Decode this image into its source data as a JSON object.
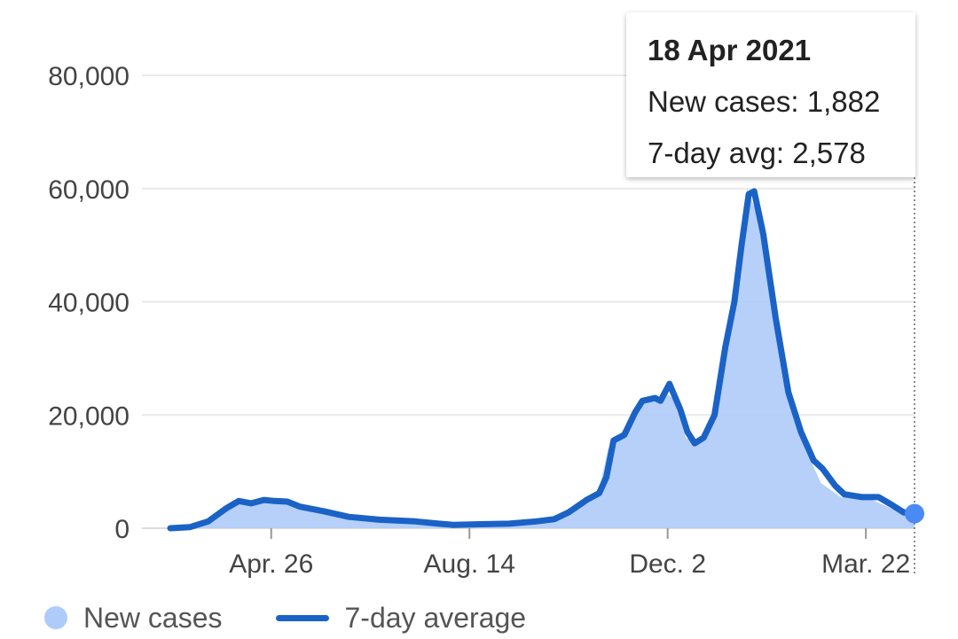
{
  "chart_data": {
    "type": "area",
    "title": "",
    "xlabel": "",
    "ylabel": "",
    "ylim": [
      0,
      80000
    ],
    "y_ticks": [
      0,
      20000,
      40000,
      60000,
      80000
    ],
    "y_tick_labels": [
      "0",
      "20,000",
      "40,000",
      "60,000",
      "80,000"
    ],
    "x_tick_labels": [
      "Apr. 26",
      "Aug. 14",
      "Dec. 2",
      "Mar. 22"
    ],
    "x_tick_dates": [
      "2020-04-26",
      "2020-08-14",
      "2020-12-02",
      "2021-03-22"
    ],
    "xlim": [
      "2020-03-01",
      "2021-04-18"
    ],
    "grid": true,
    "legend_position": "bottom-left",
    "series": [
      {
        "name": "New cases",
        "style": "filled-area",
        "color": "#aecbfa",
        "points": [
          [
            "2020-03-01",
            0
          ],
          [
            "2020-03-15",
            500
          ],
          [
            "2020-03-25",
            2000
          ],
          [
            "2020-04-05",
            5000
          ],
          [
            "2020-04-15",
            4200
          ],
          [
            "2020-04-28",
            5000
          ],
          [
            "2020-05-10",
            4500
          ],
          [
            "2020-05-20",
            3000
          ],
          [
            "2020-06-15",
            1800
          ],
          [
            "2020-07-01",
            1300
          ],
          [
            "2020-07-20",
            1000
          ],
          [
            "2020-08-01",
            400
          ],
          [
            "2020-08-20",
            600
          ],
          [
            "2020-09-10",
            800
          ],
          [
            "2020-09-25",
            1200
          ],
          [
            "2020-10-05",
            2500
          ],
          [
            "2020-10-15",
            4000
          ],
          [
            "2020-10-25",
            7000
          ],
          [
            "2020-10-30",
            14000
          ],
          [
            "2020-11-05",
            16000
          ],
          [
            "2020-11-15",
            22000
          ],
          [
            "2020-11-25",
            22500
          ],
          [
            "2020-11-30",
            24000
          ],
          [
            "2020-12-05",
            23000
          ],
          [
            "2020-12-12",
            16000
          ],
          [
            "2020-12-18",
            15000
          ],
          [
            "2020-12-25",
            17000
          ],
          [
            "2021-01-03",
            30000
          ],
          [
            "2021-01-10",
            45000
          ],
          [
            "2021-01-15",
            60000
          ],
          [
            "2021-01-20",
            56000
          ],
          [
            "2021-01-28",
            42000
          ],
          [
            "2021-02-05",
            25000
          ],
          [
            "2021-02-15",
            15000
          ],
          [
            "2021-02-25",
            8000
          ],
          [
            "2021-03-08",
            5500
          ],
          [
            "2021-03-22",
            5500
          ],
          [
            "2021-04-05",
            3500
          ],
          [
            "2021-04-18",
            1882
          ]
        ]
      },
      {
        "name": "7-day average",
        "style": "line",
        "color": "#1a62c6",
        "points": [
          [
            "2020-03-01",
            0
          ],
          [
            "2020-03-12",
            200
          ],
          [
            "2020-03-22",
            1200
          ],
          [
            "2020-04-01",
            3500
          ],
          [
            "2020-04-08",
            4800
          ],
          [
            "2020-04-15",
            4400
          ],
          [
            "2020-04-22",
            5000
          ],
          [
            "2020-04-28",
            4800
          ],
          [
            "2020-05-05",
            4700
          ],
          [
            "2020-05-12",
            3800
          ],
          [
            "2020-05-25",
            3000
          ],
          [
            "2020-06-08",
            2000
          ],
          [
            "2020-06-25",
            1500
          ],
          [
            "2020-07-15",
            1200
          ],
          [
            "2020-07-28",
            800
          ],
          [
            "2020-08-05",
            600
          ],
          [
            "2020-08-20",
            700
          ],
          [
            "2020-09-05",
            800
          ],
          [
            "2020-09-20",
            1200
          ],
          [
            "2020-09-30",
            1600
          ],
          [
            "2020-10-08",
            2800
          ],
          [
            "2020-10-18",
            5000
          ],
          [
            "2020-10-25",
            6200
          ],
          [
            "2020-10-29",
            9000
          ],
          [
            "2020-11-02",
            15500
          ],
          [
            "2020-11-08",
            16500
          ],
          [
            "2020-11-14",
            20500
          ],
          [
            "2020-11-18",
            22500
          ],
          [
            "2020-11-25",
            23000
          ],
          [
            "2020-11-28",
            22500
          ],
          [
            "2020-12-03",
            25500
          ],
          [
            "2020-12-09",
            21000
          ],
          [
            "2020-12-13",
            17000
          ],
          [
            "2020-12-17",
            15000
          ],
          [
            "2020-12-22",
            16000
          ],
          [
            "2020-12-28",
            20000
          ],
          [
            "2021-01-03",
            32000
          ],
          [
            "2021-01-08",
            40000
          ],
          [
            "2021-01-12",
            50000
          ],
          [
            "2021-01-16",
            59000
          ],
          [
            "2021-01-19",
            59500
          ],
          [
            "2021-01-24",
            52000
          ],
          [
            "2021-01-31",
            37000
          ],
          [
            "2021-02-07",
            24000
          ],
          [
            "2021-02-14",
            17000
          ],
          [
            "2021-02-21",
            12000
          ],
          [
            "2021-02-26",
            10500
          ],
          [
            "2021-03-05",
            7500
          ],
          [
            "2021-03-10",
            6000
          ],
          [
            "2021-03-20",
            5500
          ],
          [
            "2021-03-29",
            5500
          ],
          [
            "2021-04-05",
            4200
          ],
          [
            "2021-04-12",
            2800
          ],
          [
            "2021-04-18",
            2578
          ]
        ]
      }
    ],
    "highlight": {
      "date": "2021-04-18",
      "value": 2578,
      "marker_color": "#4a8af4"
    }
  },
  "tooltip": {
    "title": "18 Apr 2021",
    "row1": "New cases: 1,882",
    "row2": "7-day avg: 2,578"
  },
  "legend": {
    "items": [
      {
        "label": "New cases",
        "icon": "circle-icon",
        "color": "#aecbfa"
      },
      {
        "label": "7-day average",
        "icon": "line-icon",
        "color": "#1a62c6"
      }
    ]
  },
  "colors": {
    "gridline": "#e9e9e9",
    "axis_text": "#444444",
    "accent": "#1a62c6"
  }
}
